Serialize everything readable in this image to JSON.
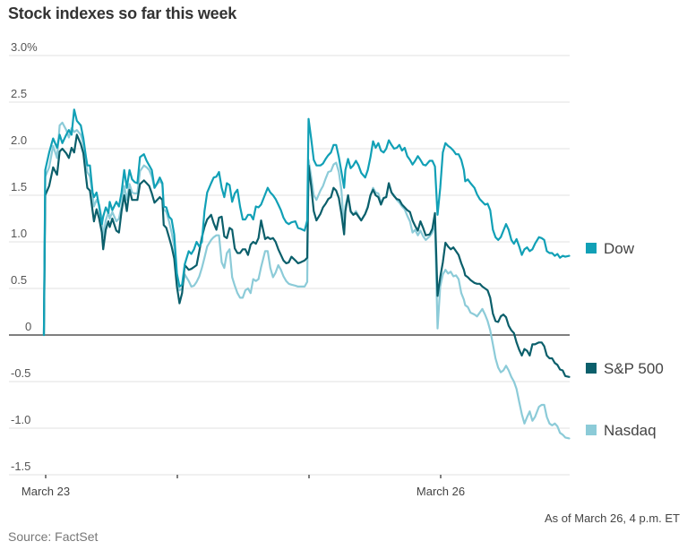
{
  "title": "Stock indexes so far this week",
  "note": "As of March 26, 4 p.m. ET",
  "source": "Source: FactSet",
  "colors": {
    "dow": "#11a0b6",
    "sp500": "#0b5f6b",
    "nasdaq": "#8ccbd8",
    "grid": "#e6e6e6",
    "zero_line": "#333333"
  },
  "chart_data": {
    "type": "line",
    "title": "Stock indexes so far this week",
    "xlabel": "",
    "ylabel": "",
    "ylim": [
      -1.5,
      3.0
    ],
    "xlim": [
      0,
      4
    ],
    "yticks": [
      {
        "value": 3.0,
        "label": "3.0%"
      },
      {
        "value": 2.5,
        "label": "2.5"
      },
      {
        "value": 2.0,
        "label": "2.0"
      },
      {
        "value": 1.5,
        "label": "1.5"
      },
      {
        "value": 1.0,
        "label": "1.0"
      },
      {
        "value": 0.5,
        "label": "0.5"
      },
      {
        "value": 0,
        "label": "0"
      },
      {
        "value": -0.5,
        "label": "-0.5"
      },
      {
        "value": -1.0,
        "label": "-1.0"
      },
      {
        "value": -1.5,
        "label": "-1.5"
      }
    ],
    "xticks": [
      {
        "value": 0,
        "label": "March 23"
      },
      {
        "value": 1,
        "label": ""
      },
      {
        "value": 2,
        "label": ""
      },
      {
        "value": 3,
        "label": "March 26"
      }
    ],
    "grid": true,
    "legend_position": "right",
    "x_unit": "trading days since March 23 open",
    "x": [
      0.0,
      0.01,
      0.04,
      0.07,
      0.1,
      0.12,
      0.14,
      0.17,
      0.19,
      0.21,
      0.23,
      0.25,
      0.28,
      0.3,
      0.32,
      0.33,
      0.35,
      0.37,
      0.38,
      0.4,
      0.42,
      0.44,
      0.45,
      0.47,
      0.49,
      0.5,
      0.52,
      0.55,
      0.57,
      0.59,
      0.61,
      0.63,
      0.65,
      0.67,
      0.69,
      0.71,
      0.73,
      0.76,
      0.78,
      0.8,
      0.82,
      0.84,
      0.86,
      0.88,
      0.9,
      0.91,
      0.93,
      0.95,
      0.97,
      0.99,
      1.01,
      1.03,
      1.05,
      1.07,
      1.1,
      1.12,
      1.14,
      1.16,
      1.18,
      1.2,
      1.22,
      1.24,
      1.27,
      1.29,
      1.31,
      1.33,
      1.35,
      1.37,
      1.39,
      1.41,
      1.43,
      1.45,
      1.47,
      1.49,
      1.51,
      1.53,
      1.55,
      1.57,
      1.59,
      1.61,
      1.63,
      1.65,
      1.68,
      1.7,
      1.72,
      1.74,
      1.76,
      1.78,
      1.8,
      1.82,
      1.84,
      1.86,
      1.88,
      1.91,
      1.93,
      1.95,
      1.98,
      2.0,
      2.01,
      2.03,
      2.05,
      2.07,
      2.1,
      2.12,
      2.14,
      2.16,
      2.18,
      2.2,
      2.22,
      2.24,
      2.26,
      2.28,
      2.29,
      2.31,
      2.33,
      2.35,
      2.37,
      2.39,
      2.41,
      2.44,
      2.46,
      2.48,
      2.5,
      2.52,
      2.54,
      2.56,
      2.58,
      2.6,
      2.62,
      2.64,
      2.66,
      2.68,
      2.7,
      2.72,
      2.74,
      2.76,
      2.78,
      2.8,
      2.82,
      2.84,
      2.86,
      2.88,
      2.9,
      2.93,
      2.95,
      2.97,
      2.99,
      3.01,
      3.03,
      3.05,
      3.07,
      3.09,
      3.11,
      3.13,
      3.15,
      3.17,
      3.19,
      3.2,
      3.22,
      3.24,
      3.27,
      3.29,
      3.31,
      3.33,
      3.35,
      3.37,
      3.39,
      3.41,
      3.43,
      3.45,
      3.47,
      3.49,
      3.51,
      3.53,
      3.55,
      3.57,
      3.59,
      3.61,
      3.63,
      3.65,
      3.67,
      3.69,
      3.71,
      3.73,
      3.76,
      3.78,
      3.8,
      3.82,
      3.84,
      3.86,
      3.88,
      3.9,
      3.92,
      3.94,
      3.96,
      3.99
    ],
    "series": [
      {
        "name": "Nasdaq",
        "key": "nasdaq",
        "values": [
          0.0,
          1.7,
          1.8,
          2.03,
          1.9,
          2.25,
          2.28,
          2.2,
          2.12,
          2.22,
          2.18,
          2.2,
          2.15,
          2.05,
          1.85,
          1.75,
          1.7,
          1.5,
          1.38,
          1.45,
          1.4,
          1.25,
          1.05,
          1.23,
          1.32,
          1.25,
          1.32,
          1.22,
          1.25,
          1.38,
          1.6,
          1.45,
          1.62,
          1.53,
          1.52,
          1.52,
          1.76,
          1.82,
          1.8,
          1.77,
          1.7,
          1.58,
          1.62,
          1.65,
          1.62,
          1.35,
          1.32,
          1.22,
          1.1,
          0.95,
          0.55,
          0.48,
          0.5,
          0.65,
          0.58,
          0.52,
          0.53,
          0.57,
          0.63,
          0.72,
          0.83,
          0.95,
          1.02,
          1.05,
          1.07,
          1.07,
          0.78,
          0.72,
          0.88,
          0.92,
          0.62,
          0.53,
          0.45,
          0.4,
          0.4,
          0.48,
          0.5,
          0.45,
          0.6,
          0.58,
          0.6,
          0.73,
          0.9,
          0.9,
          0.72,
          0.62,
          0.67,
          0.75,
          0.7,
          0.63,
          0.58,
          0.55,
          0.54,
          0.53,
          0.52,
          0.52,
          0.52,
          0.57,
          1.88,
          1.7,
          1.5,
          1.45,
          1.55,
          1.6,
          1.68,
          1.75,
          1.76,
          1.83,
          1.85,
          1.75,
          1.55,
          1.12,
          1.38,
          1.5,
          1.32,
          1.29,
          1.33,
          1.28,
          1.23,
          1.3,
          1.38,
          1.5,
          1.58,
          1.53,
          1.52,
          1.42,
          1.47,
          1.48,
          1.62,
          1.53,
          1.5,
          1.45,
          1.42,
          1.38,
          1.35,
          1.28,
          1.22,
          1.1,
          1.13,
          1.07,
          1.12,
          1.06,
          1.02,
          1.06,
          1.1,
          1.2,
          0.07,
          0.52,
          0.65,
          0.7,
          0.66,
          0.68,
          0.63,
          0.64,
          0.6,
          0.45,
          0.38,
          0.32,
          0.3,
          0.24,
          0.22,
          0.2,
          0.24,
          0.28,
          0.22,
          0.15,
          0.05,
          -0.1,
          -0.25,
          -0.35,
          -0.4,
          -0.38,
          -0.33,
          -0.38,
          -0.45,
          -0.5,
          -0.58,
          -0.72,
          -0.85,
          -0.95,
          -0.88,
          -0.82,
          -0.92,
          -0.88,
          -0.77,
          -0.75,
          -0.75,
          -0.88,
          -0.95,
          -0.97,
          -0.95,
          -0.98,
          -1.05,
          -1.07,
          -1.1,
          -1.11
        ]
      },
      {
        "name": "S&P 500",
        "key": "sp500",
        "values": [
          0.0,
          1.5,
          1.6,
          1.8,
          1.72,
          1.97,
          2.0,
          1.95,
          1.9,
          2.01,
          1.96,
          2.15,
          2.05,
          1.95,
          1.7,
          1.58,
          1.55,
          1.33,
          1.22,
          1.35,
          1.25,
          1.1,
          0.92,
          1.13,
          1.22,
          1.16,
          1.25,
          1.12,
          1.1,
          1.33,
          1.5,
          1.33,
          1.56,
          1.45,
          1.45,
          1.45,
          1.62,
          1.66,
          1.63,
          1.6,
          1.52,
          1.42,
          1.45,
          1.48,
          1.45,
          1.18,
          1.15,
          1.05,
          0.95,
          0.82,
          0.52,
          0.34,
          0.45,
          0.75,
          0.7,
          0.71,
          0.73,
          0.75,
          0.9,
          1.05,
          1.16,
          1.24,
          1.29,
          1.2,
          1.13,
          1.26,
          1.27,
          1.06,
          1.04,
          1.15,
          1.13,
          0.93,
          0.88,
          0.88,
          0.92,
          0.92,
          0.86,
          0.97,
          1.0,
          0.98,
          1.04,
          1.23,
          1.03,
          1.05,
          1.03,
          1.04,
          1.0,
          0.92,
          0.86,
          0.8,
          0.77,
          0.78,
          0.84,
          0.8,
          0.77,
          0.78,
          0.8,
          0.83,
          1.82,
          1.6,
          1.33,
          1.23,
          1.3,
          1.37,
          1.41,
          1.46,
          1.48,
          1.58,
          1.55,
          1.47,
          1.3,
          1.08,
          1.33,
          1.5,
          1.33,
          1.29,
          1.31,
          1.27,
          1.23,
          1.3,
          1.37,
          1.5,
          1.56,
          1.5,
          1.48,
          1.4,
          1.47,
          1.48,
          1.63,
          1.53,
          1.49,
          1.46,
          1.45,
          1.4,
          1.37,
          1.34,
          1.32,
          1.23,
          1.17,
          1.12,
          1.22,
          1.15,
          1.07,
          1.08,
          1.14,
          1.31,
          0.42,
          0.62,
          0.78,
          0.99,
          0.95,
          0.92,
          0.94,
          0.9,
          0.86,
          0.77,
          0.7,
          0.64,
          0.62,
          0.59,
          0.56,
          0.55,
          0.55,
          0.52,
          0.5,
          0.48,
          0.4,
          0.23,
          0.15,
          0.14,
          0.2,
          0.22,
          0.19,
          0.1,
          0.05,
          0.02,
          -0.08,
          -0.16,
          -0.22,
          -0.15,
          -0.17,
          -0.22,
          -0.1,
          -0.1,
          -0.08,
          -0.08,
          -0.12,
          -0.22,
          -0.25,
          -0.25,
          -0.3,
          -0.32,
          -0.37,
          -0.38,
          -0.44,
          -0.45
        ]
      },
      {
        "name": "Dow",
        "key": "dow",
        "values": [
          0.0,
          1.77,
          1.96,
          2.11,
          2.01,
          2.15,
          2.06,
          2.15,
          2.2,
          2.15,
          2.42,
          2.3,
          2.25,
          2.11,
          1.91,
          1.82,
          1.82,
          1.53,
          1.48,
          1.53,
          1.38,
          1.19,
          1.27,
          1.37,
          1.31,
          1.43,
          1.34,
          1.43,
          1.38,
          1.53,
          1.77,
          1.58,
          1.77,
          1.67,
          1.64,
          1.63,
          1.91,
          1.94,
          1.87,
          1.82,
          1.77,
          1.58,
          1.63,
          1.69,
          1.63,
          1.38,
          1.37,
          1.27,
          1.24,
          1.08,
          0.66,
          0.52,
          0.54,
          0.76,
          0.9,
          0.87,
          0.92,
          1.0,
          0.95,
          1.0,
          1.33,
          1.53,
          1.63,
          1.69,
          1.7,
          1.75,
          1.58,
          1.48,
          1.63,
          1.61,
          1.43,
          1.52,
          1.56,
          1.38,
          1.24,
          1.24,
          1.29,
          1.29,
          1.24,
          1.38,
          1.37,
          1.4,
          1.51,
          1.58,
          1.53,
          1.5,
          1.46,
          1.4,
          1.34,
          1.26,
          1.21,
          1.19,
          1.21,
          1.22,
          1.15,
          1.14,
          1.12,
          1.23,
          2.32,
          2.11,
          1.88,
          1.82,
          1.82,
          1.84,
          1.89,
          1.93,
          1.96,
          2.04,
          2.04,
          1.91,
          1.75,
          1.58,
          1.77,
          1.89,
          1.79,
          1.82,
          1.87,
          1.82,
          1.74,
          1.69,
          1.77,
          1.91,
          2.08,
          2.01,
          2.06,
          1.98,
          1.96,
          2.0,
          2.09,
          2.04,
          2.0,
          2.01,
          2.04,
          1.98,
          2.01,
          1.92,
          1.88,
          1.83,
          1.87,
          1.92,
          1.88,
          1.83,
          1.82,
          1.87,
          1.87,
          1.81,
          1.29,
          1.58,
          1.96,
          2.06,
          2.03,
          2.01,
          1.98,
          1.94,
          1.94,
          1.88,
          1.77,
          1.65,
          1.67,
          1.63,
          1.58,
          1.51,
          1.46,
          1.43,
          1.4,
          1.41,
          1.34,
          1.13,
          1.05,
          1.02,
          1.05,
          1.12,
          1.19,
          1.13,
          1.02,
          0.98,
          1.03,
          0.95,
          0.86,
          0.92,
          0.94,
          0.9,
          0.92,
          0.98,
          1.05,
          1.04,
          1.02,
          0.9,
          0.88,
          0.88,
          0.85,
          0.87,
          0.83,
          0.85,
          0.84,
          0.85
        ]
      }
    ],
    "legend": [
      {
        "name": "Dow",
        "key": "dow"
      },
      {
        "name": "S&P 500",
        "key": "sp500"
      },
      {
        "name": "Nasdaq",
        "key": "nasdaq"
      }
    ]
  }
}
